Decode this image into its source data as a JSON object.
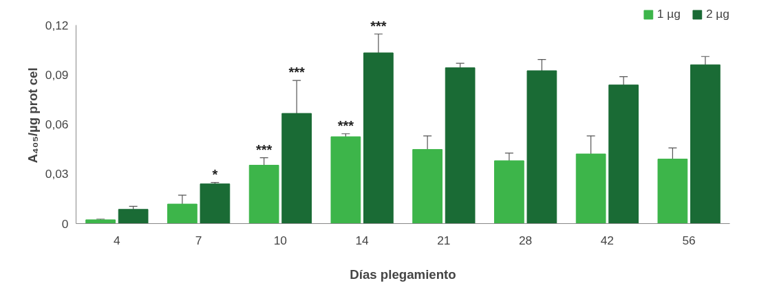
{
  "chart_data": {
    "type": "bar",
    "xlabel": "Días plegamiento",
    "ylabel": "A₄₀₅/µg prot cel",
    "categories": [
      "4",
      "7",
      "10",
      "14",
      "21",
      "28",
      "42",
      "56"
    ],
    "series": [
      {
        "name": "1 µg",
        "color": "#3db54a",
        "values": [
          0.0023,
          0.0118,
          0.0353,
          0.0525,
          0.0448,
          0.038,
          0.0421,
          0.039
        ],
        "errors": [
          [
            0.0023,
            0.0027
          ],
          [
            0.0118,
            0.0172
          ],
          [
            0.0353,
            0.0398
          ],
          [
            0.0525,
            0.0543
          ],
          [
            0.0448,
            0.053
          ],
          [
            0.038,
            0.0426
          ],
          [
            0.0421,
            0.053
          ],
          [
            0.039,
            0.0457
          ]
        ]
      },
      {
        "name": "2 µg",
        "color": "#1a6b35",
        "values": [
          0.0086,
          0.024,
          0.0666,
          0.1032,
          0.0942,
          0.0924,
          0.0838,
          0.096
        ],
        "errors": [
          [
            0.0086,
            0.0104
          ],
          [
            0.024,
            0.0249
          ],
          [
            0.0666,
            0.0865
          ],
          [
            0.1032,
            0.1146
          ],
          [
            0.0942,
            0.0969
          ],
          [
            0.0924,
            0.0992
          ],
          [
            0.0838,
            0.0888
          ],
          [
            0.096,
            0.101
          ]
        ]
      }
    ],
    "annotations": [
      {
        "text": "*",
        "x": "7",
        "y": 0.024
      },
      {
        "text": "***",
        "x": "10",
        "y": 0.0353
      },
      {
        "text": "***",
        "x": "10",
        "y": 0.0666
      },
      {
        "text": "***",
        "x": "14",
        "y": 0.0525
      },
      {
        "text": "***",
        "x": "14",
        "y": 0.1032
      }
    ],
    "ylim": [
      0,
      0.12
    ],
    "yticks": [
      {
        "value": 0,
        "label": "0"
      },
      {
        "value": 0.03,
        "label": "0,03"
      },
      {
        "value": 0.06,
        "label": "0,06"
      },
      {
        "value": 0.09,
        "label": "0,09"
      },
      {
        "value": 0.12,
        "label": "0,12"
      }
    ],
    "legend": "top right",
    "grid": false
  }
}
